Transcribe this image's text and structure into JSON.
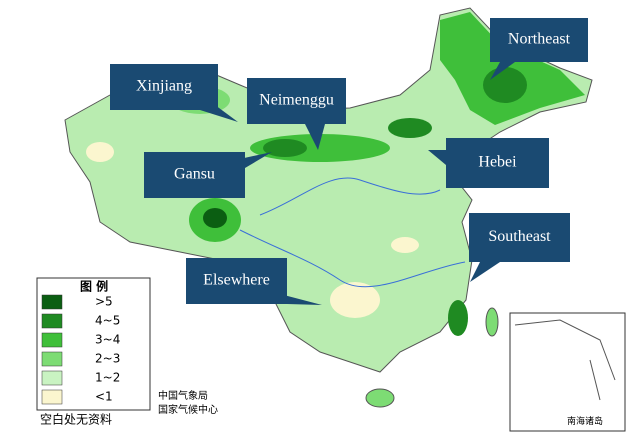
{
  "callouts": [
    {
      "label": "Northeast"
    },
    {
      "label": "Xinjiang"
    },
    {
      "label": "Neimenggu"
    },
    {
      "label": "Gansu"
    },
    {
      "label": "Hebei"
    },
    {
      "label": "Southeast"
    },
    {
      "label": "Elsewhere"
    }
  ],
  "legend": {
    "title": "图 例",
    "items": [
      {
        "label": ">5",
        "color": "#0b5e12"
      },
      {
        "label": "4~5",
        "color": "#1f8a22"
      },
      {
        "label": "3~4",
        "color": "#3fbf3a"
      },
      {
        "label": "2~3",
        "color": "#7ddc74"
      },
      {
        "label": "1~2",
        "color": "#c9f3c2"
      },
      {
        "label": "<1",
        "color": "#fbf6cf"
      }
    ],
    "note": "空白处无资料"
  },
  "credits": [
    "中国气象局",
    "国家气候中心"
  ],
  "inset": {
    "label": "南海诸岛"
  }
}
